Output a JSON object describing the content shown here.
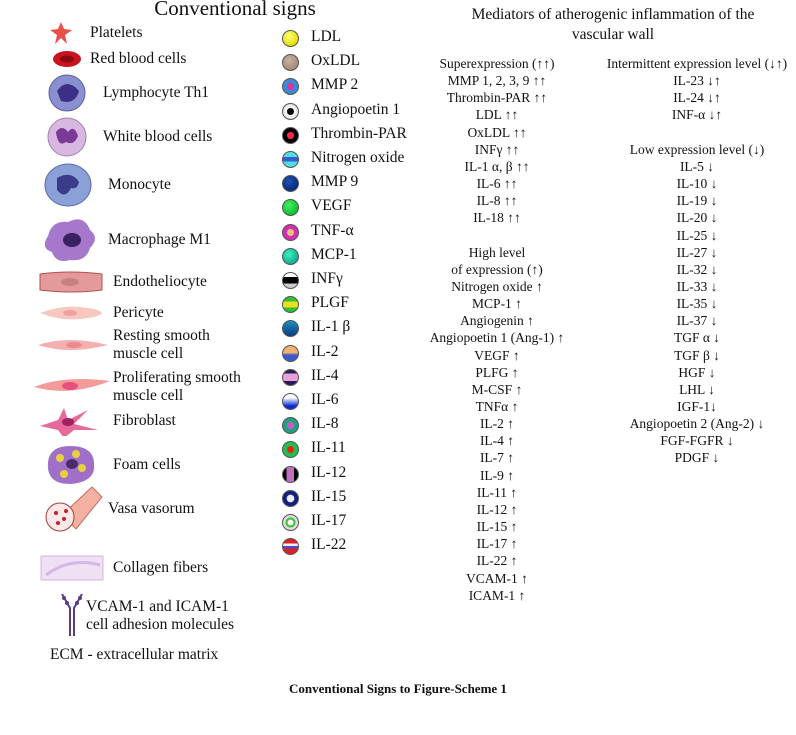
{
  "legend": {
    "title": "Conventional signs",
    "cells": [
      {
        "label": "Platelets",
        "icon": "platelet-icon"
      },
      {
        "label": "Red blood cells",
        "icon": "red-blood-cell-icon"
      },
      {
        "label": "Lymphocyte Th1",
        "icon": "lymphocyte-icon"
      },
      {
        "label": "White blood cells",
        "icon": "white-blood-cell-icon"
      },
      {
        "label": "Monocyte",
        "icon": "monocyte-icon"
      },
      {
        "label": "Macrophage M1",
        "icon": "macrophage-icon"
      },
      {
        "label": "Endotheliocyte",
        "icon": "endotheliocyte-icon"
      },
      {
        "label": "Pericyte",
        "icon": "pericyte-icon"
      },
      {
        "label": "Resting smooth\nmuscle cell",
        "icon": "resting-smooth-muscle-cell-icon"
      },
      {
        "label": "Proliferating smooth\nmuscle cell",
        "icon": "proliferating-smooth-muscle-cell-icon"
      },
      {
        "label": "Fibroblast",
        "icon": "fibroblast-icon"
      },
      {
        "label": "Foam cells",
        "icon": "foam-cell-icon"
      },
      {
        "label": "Vasa vasorum",
        "icon": "vasa-vasorum-icon"
      },
      {
        "label": "Collagen fibers",
        "icon": "collagen-fibers-icon"
      },
      {
        "label": "VCAM-1 and ICAM-1\ncell adhesion molecules",
        "icon": "adhesion-molecules-icon"
      }
    ],
    "ecm_note": "ECM - extracellular matrix",
    "molecules": [
      "LDL",
      "OxLDL",
      "MMP 2",
      "Angiopoetin 1",
      "Thrombin-PAR",
      "Nitrogen oxide",
      "MMP 9",
      "VEGF",
      "TNF-α",
      "MCP-1",
      "INFγ",
      "PLGF",
      "IL-1 β",
      "IL-2",
      "IL-4",
      "IL-6",
      "IL-8",
      "IL-11",
      "IL-12",
      "IL-15",
      "IL-17",
      "IL-22"
    ]
  },
  "mediators": {
    "title_line1": "Mediators of atherogenic inflammation of the",
    "title_line2": "vascular wall",
    "left_column": [
      "Superexpression (↑↑)",
      "MMP 1, 2, 3, 9 ↑↑",
      "Thrombin-PAR ↑↑",
      "LDL ↑↑",
      "OxLDL ↑↑",
      "INFγ ↑↑",
      "IL-1 α, β ↑↑",
      "IL-6 ↑↑",
      "IL-8 ↑↑",
      "IL-18 ↑↑",
      "",
      "High level",
      "of expression (↑)",
      "Nitrogen oxide ↑",
      "MCP-1 ↑",
      "Angiogenin ↑",
      "Angiopoetin 1 (Ang-1) ↑",
      "VEGF ↑",
      "PLFG ↑",
      "M-CSF ↑",
      "TNFα ↑",
      "IL-2 ↑",
      "IL-4 ↑",
      "IL-7 ↑",
      "IL-9 ↑",
      "IL-11 ↑",
      "IL-12 ↑",
      "IL-15 ↑",
      "IL-17 ↑",
      "IL-22 ↑",
      "VCAM-1 ↑",
      "ICAM-1 ↑"
    ],
    "right_column": [
      "Intermittent expression level (↓↑)",
      "IL-23 ↓↑",
      "IL-24 ↓↑",
      "INF-α ↓↑",
      "",
      "Low expression level (↓)",
      "IL-5 ↓",
      "IL-10 ↓",
      "IL-19 ↓",
      "IL-20 ↓",
      "IL-25 ↓",
      "IL-27 ↓",
      "IL-32 ↓",
      "IL-33 ↓",
      "IL-35 ↓",
      "IL-37 ↓",
      "TGF α ↓",
      "TGF β ↓",
      "HGF ↓",
      "LHL ↓",
      "IGF-1↓",
      "Angiopoetin 2 (Ang-2) ↓",
      "FGF-FGFR ↓",
      "PDGF ↓"
    ]
  },
  "caption": "Conventional Signs to Figure-Scheme 1"
}
